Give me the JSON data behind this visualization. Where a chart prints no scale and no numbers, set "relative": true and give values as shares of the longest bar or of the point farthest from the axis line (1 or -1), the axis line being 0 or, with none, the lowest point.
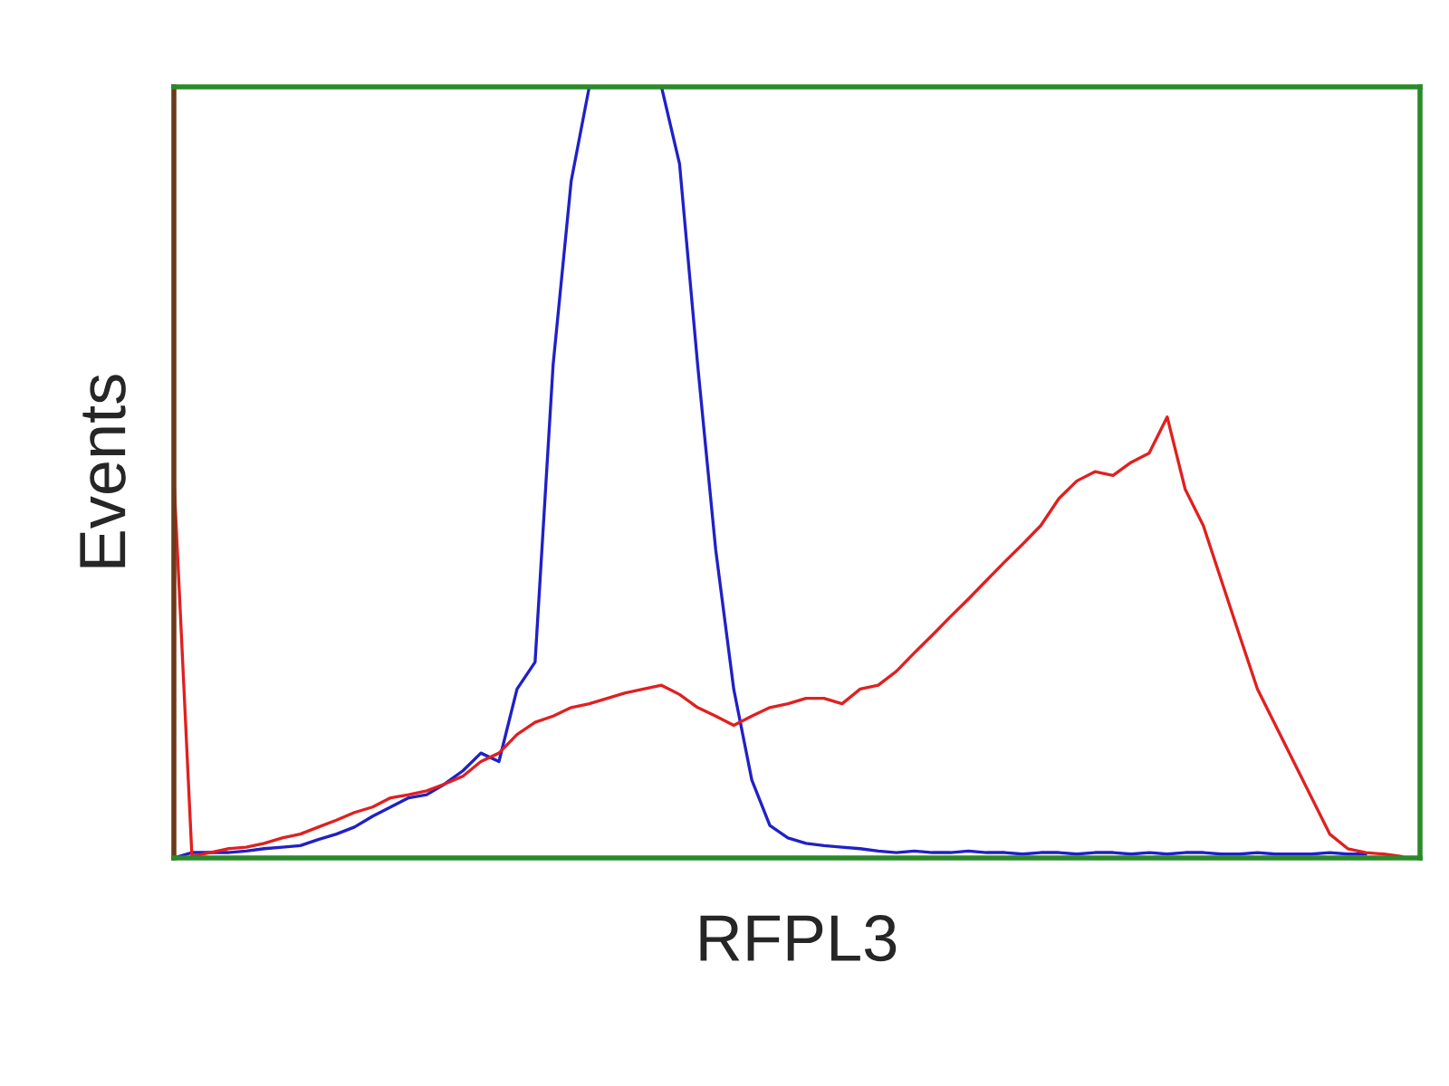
{
  "chart_data": {
    "type": "line",
    "relative": true,
    "xlabel": "RFPL3",
    "ylabel": "Events",
    "grid": false,
    "legend": false,
    "tick_labels": false,
    "marker": "none",
    "line_style": "solid",
    "categories": [
      null,
      null,
      null,
      null,
      null,
      null,
      null,
      null,
      null,
      null,
      null,
      null,
      null,
      null,
      null,
      null,
      null,
      null,
      null,
      null,
      null,
      null,
      null,
      null,
      null,
      null,
      null,
      null,
      null,
      null,
      null,
      null,
      null,
      null,
      null,
      null,
      null,
      null,
      null,
      null,
      null,
      null,
      null,
      null,
      null,
      null,
      null,
      null,
      null,
      null,
      null,
      null,
      null,
      null,
      null,
      null,
      null,
      null,
      null,
      null,
      null,
      null,
      null,
      null,
      null,
      null,
      null,
      null,
      null,
      null
    ],
    "series": [
      {
        "color": "#2020c8",
        "values": [
          0,
          0.007,
          0.007,
          0.007,
          0.009,
          0.012,
          0.014,
          0.016,
          0.024,
          0.031,
          0.04,
          0.054,
          0.066,
          0.078,
          0.082,
          0.096,
          0.113,
          0.136,
          0.125,
          0.219,
          0.254,
          0.64,
          0.878,
          1.0,
          null,
          null,
          null,
          1.0,
          0.9,
          0.64,
          0.4,
          0.219,
          0.101,
          0.042,
          0.026,
          0.019,
          0.016,
          0.014,
          0.012,
          0.009,
          0.007,
          0.009,
          0.007,
          0.007,
          0.009,
          0.007,
          0.007,
          0.005,
          0.007,
          0.007,
          0.005,
          0.007,
          0.007,
          0.005,
          0.007,
          0.005,
          0.007,
          0.007,
          0.005,
          0.005,
          0.007,
          0.005,
          0.005,
          0.005,
          0.007,
          0.005,
          0.005,
          null,
          null,
          null
        ]
      },
      {
        "color": "#e02020",
        "values": [
          0.494,
          0.002,
          0.007,
          0.012,
          0.014,
          0.019,
          0.026,
          0.031,
          0.04,
          0.049,
          0.059,
          0.066,
          0.078,
          0.082,
          0.087,
          0.096,
          0.106,
          0.125,
          0.136,
          0.16,
          0.176,
          0.184,
          0.195,
          0.2,
          0.207,
          0.214,
          0.219,
          0.224,
          0.212,
          0.195,
          0.184,
          0.172,
          0.184,
          0.195,
          0.2,
          0.207,
          0.207,
          0.2,
          0.219,
          0.224,
          0.242,
          0.266,
          0.289,
          0.313,
          0.336,
          0.36,
          0.384,
          0.407,
          0.431,
          0.466,
          0.489,
          0.501,
          0.496,
          0.513,
          0.525,
          0.572,
          0.478,
          0.431,
          0.36,
          0.289,
          0.219,
          0.172,
          0.125,
          0.078,
          0.031,
          0.012,
          0.007,
          0.005,
          0.002,
          null
        ]
      }
    ]
  }
}
